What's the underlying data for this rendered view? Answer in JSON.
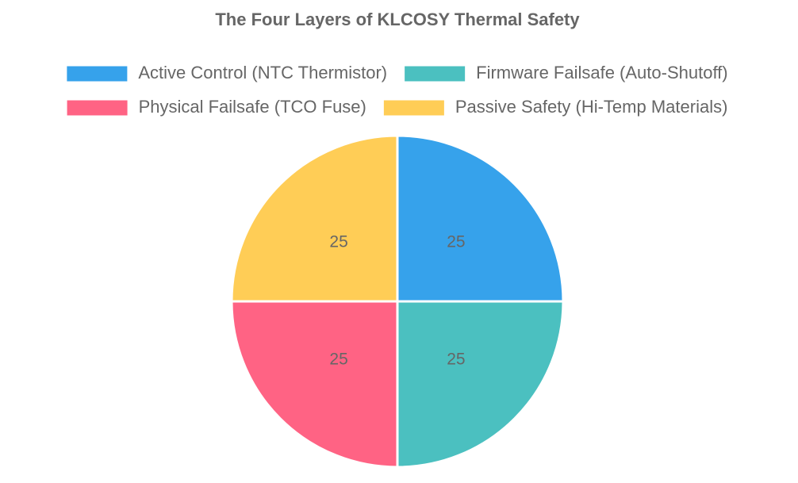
{
  "chart_data": {
    "type": "pie",
    "title": "The Four Layers of KLCOSY Thermal Safety",
    "categories": [
      "Active Control (NTC Thermistor)",
      "Firmware Failsafe (Auto-Shutoff)",
      "Physical Failsafe (TCO Fuse)",
      "Passive Safety (Hi-Temp Materials)"
    ],
    "values": [
      25,
      25,
      25,
      25
    ],
    "colors": [
      "#36a2eb",
      "#4bc0c0",
      "#ff6384",
      "#ffcd56"
    ],
    "legend": "top"
  }
}
